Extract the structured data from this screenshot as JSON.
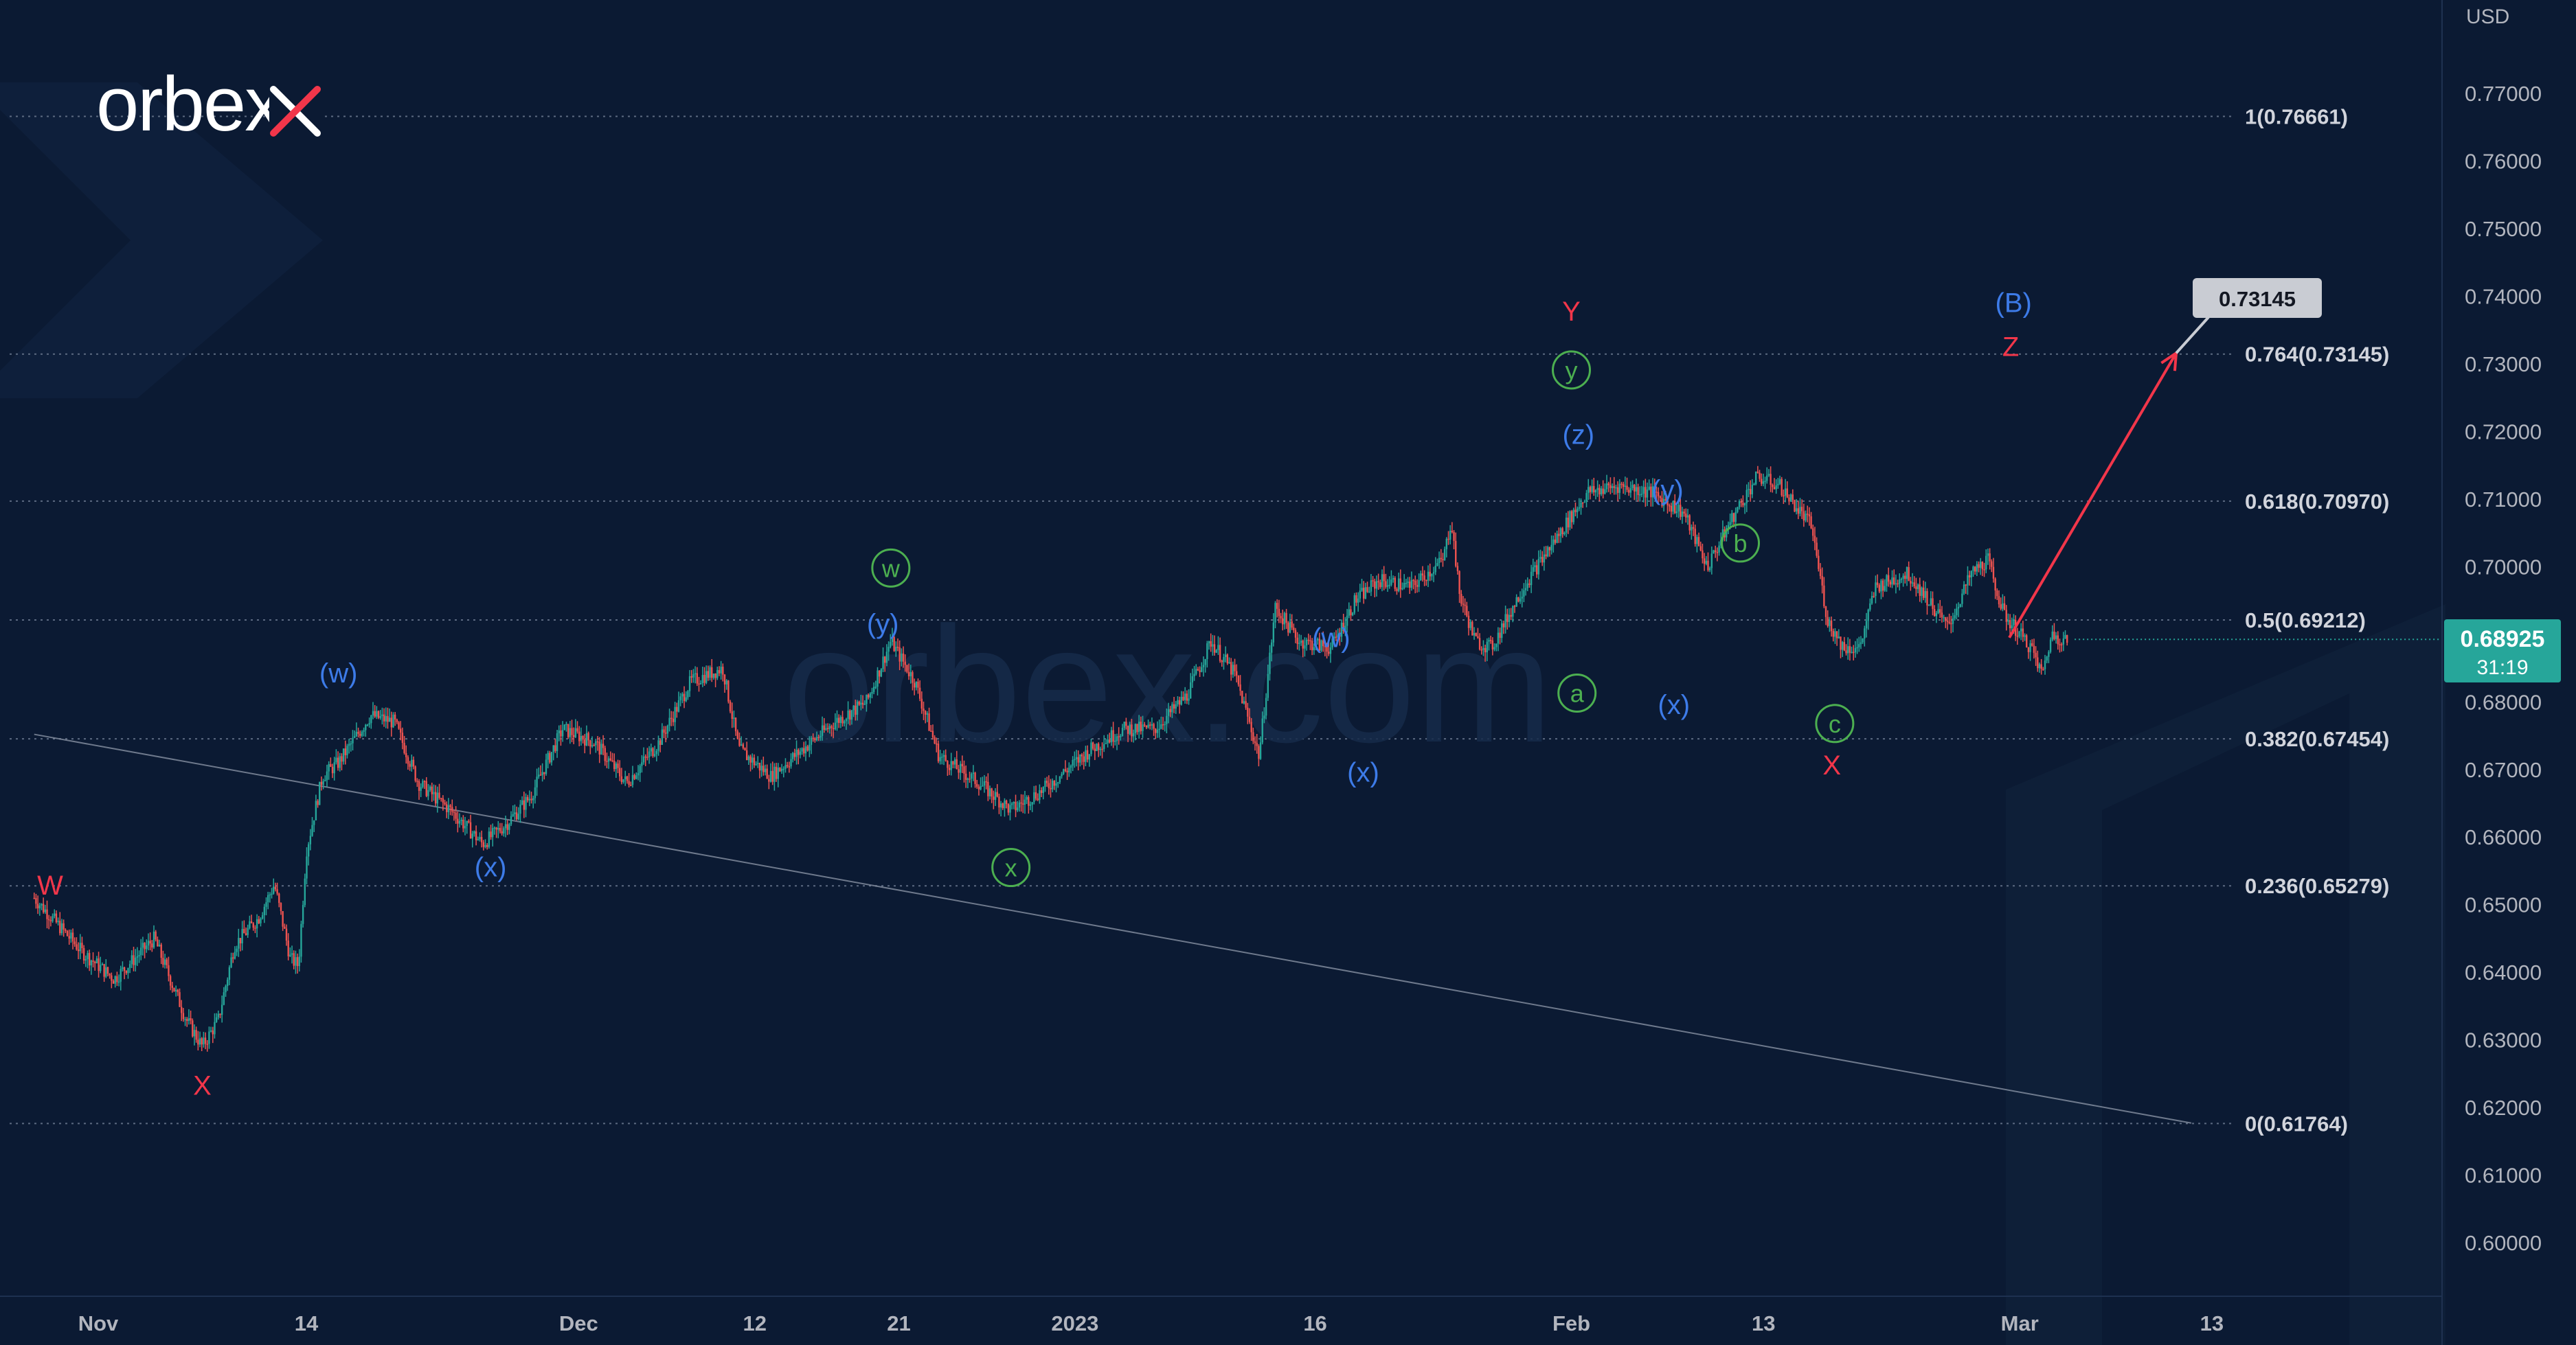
{
  "brand": {
    "logo_text": "orbex",
    "watermark_text": "orbex.com"
  },
  "chart_data": {
    "type": "candlestick",
    "instrument_currency": "USD",
    "ylim": [
      0.592,
      0.779
    ],
    "y_ticks": [
      "0.77000",
      "0.76000",
      "0.75000",
      "0.74000",
      "0.73000",
      "0.72000",
      "0.71000",
      "0.70000",
      "0.69000",
      "0.68000",
      "0.67000",
      "0.66000",
      "0.65000",
      "0.64000",
      "0.63000",
      "0.62000",
      "0.61000",
      "0.60000"
    ],
    "x_ticks": [
      {
        "label": "Nov",
        "day": 0
      },
      {
        "label": "14",
        "day": 13
      },
      {
        "label": "Dec",
        "day": 30
      },
      {
        "label": "12",
        "day": 41
      },
      {
        "label": "21",
        "day": 50
      },
      {
        "label": "2023",
        "day": 61
      },
      {
        "label": "16",
        "day": 76
      },
      {
        "label": "Feb",
        "day": 92
      },
      {
        "label": "13",
        "day": 104
      },
      {
        "label": "Mar",
        "day": 120
      },
      {
        "label": "13",
        "day": 132
      }
    ],
    "current_price": {
      "price": "0.68925",
      "value": 0.68925,
      "countdown": "31:19",
      "color": "#26a69a"
    },
    "fib_levels": [
      {
        "label": "1(0.76661)",
        "value": 0.76661
      },
      {
        "label": "0.764(0.73145)",
        "value": 0.73145
      },
      {
        "label": "0.618(0.70970)",
        "value": 0.7097
      },
      {
        "label": "0.5(0.69212)",
        "value": 0.69212
      },
      {
        "label": "0.382(0.67454)",
        "value": 0.67454
      },
      {
        "label": "0.236(0.65279)",
        "value": 0.65279
      },
      {
        "label": "0(0.61764)",
        "value": 0.61764
      }
    ],
    "trendline": {
      "from": {
        "day": -4,
        "value": 0.6752
      },
      "to": {
        "day": 121,
        "value": 0.6177
      }
    },
    "projection": {
      "from": {
        "day": 110.4,
        "value": 0.6895
      },
      "to": {
        "day": 119.9,
        "value": 0.7316
      },
      "target_label": "0.73145",
      "color": "#f2364a"
    },
    "path_points": [
      [
        -4,
        0.651
      ],
      [
        -1,
        0.643
      ],
      [
        1,
        0.639
      ],
      [
        3.5,
        0.645
      ],
      [
        5.5,
        0.633
      ],
      [
        6.5,
        0.629
      ],
      [
        7.5,
        0.633
      ],
      [
        8.5,
        0.644
      ],
      [
        10,
        0.648
      ],
      [
        11,
        0.653
      ],
      [
        12,
        0.642
      ],
      [
        12.5,
        0.641
      ],
      [
        13,
        0.658
      ],
      [
        14,
        0.669
      ],
      [
        15,
        0.671
      ],
      [
        17,
        0.678
      ],
      [
        18.5,
        0.677
      ],
      [
        20,
        0.668
      ],
      [
        22,
        0.664
      ],
      [
        24,
        0.659
      ],
      [
        25.5,
        0.662
      ],
      [
        27,
        0.666
      ],
      [
        29,
        0.676
      ],
      [
        31,
        0.674
      ],
      [
        33,
        0.668
      ],
      [
        35,
        0.674
      ],
      [
        37,
        0.683
      ],
      [
        39,
        0.685
      ],
      [
        40,
        0.673
      ],
      [
        42,
        0.669
      ],
      [
        44,
        0.673
      ],
      [
        46,
        0.677
      ],
      [
        48,
        0.68
      ],
      [
        49.5,
        0.689
      ],
      [
        51,
        0.683
      ],
      [
        52.5,
        0.672
      ],
      [
        55,
        0.668
      ],
      [
        57,
        0.664
      ],
      [
        59,
        0.667
      ],
      [
        62,
        0.673
      ],
      [
        64,
        0.676
      ],
      [
        66,
        0.676
      ],
      [
        68,
        0.681
      ],
      [
        69.5,
        0.689
      ],
      [
        71,
        0.684
      ],
      [
        72.5,
        0.672
      ],
      [
        73.5,
        0.694
      ],
      [
        75,
        0.689
      ],
      [
        77,
        0.688
      ],
      [
        78.5,
        0.695
      ],
      [
        80,
        0.698
      ],
      [
        82,
        0.697
      ],
      [
        84,
        0.701
      ],
      [
        84.5,
        0.707
      ],
      [
        85,
        0.696
      ],
      [
        86,
        0.689
      ],
      [
        87,
        0.688
      ],
      [
        89,
        0.697
      ],
      [
        91,
        0.704
      ],
      [
        93,
        0.711
      ],
      [
        95,
        0.712
      ],
      [
        97,
        0.711
      ],
      [
        99,
        0.708
      ],
      [
        100.5,
        0.7
      ],
      [
        102,
        0.707
      ],
      [
        103.5,
        0.713
      ],
      [
        104,
        0.713
      ],
      [
        105,
        0.712
      ],
      [
        107,
        0.706
      ],
      [
        108,
        0.692
      ],
      [
        109,
        0.688
      ],
      [
        110,
        0.688
      ],
      [
        111,
        0.697
      ],
      [
        113,
        0.699
      ],
      [
        114,
        0.696
      ],
      [
        115.5,
        0.691
      ],
      [
        117,
        0.699
      ],
      [
        118,
        0.701
      ],
      [
        119,
        0.693
      ],
      [
        120,
        0.69
      ],
      [
        120.7,
        0.688
      ],
      [
        121.4,
        0.684
      ],
      [
        122,
        0.69
      ],
      [
        123,
        0.689
      ]
    ],
    "wave_labels": [
      {
        "text": "W",
        "day": -3,
        "value": 0.6528,
        "color": "#f2364a",
        "circled": false
      },
      {
        "text": "X",
        "day": 6.5,
        "value": 0.6232,
        "color": "#f2364a",
        "circled": false
      },
      {
        "text": "(w)",
        "day": 15,
        "value": 0.6842,
        "color": "#3d7be8",
        "circled": false
      },
      {
        "text": "(x)",
        "day": 24.5,
        "value": 0.6555,
        "color": "#3d7be8",
        "circled": false
      },
      {
        "text": "w",
        "day": 49.5,
        "value": 0.6998,
        "color": "#4caf50",
        "circled": true
      },
      {
        "text": "(y)",
        "day": 49,
        "value": 0.6915,
        "color": "#3d7be8",
        "circled": false
      },
      {
        "text": "x",
        "day": 57,
        "value": 0.6555,
        "color": "#4caf50",
        "circled": true
      },
      {
        "text": "(w)",
        "day": 77,
        "value": 0.6894,
        "color": "#3d7be8",
        "circled": false
      },
      {
        "text": "(x)",
        "day": 79,
        "value": 0.6695,
        "color": "#3d7be8",
        "circled": false
      },
      {
        "text": "(y)",
        "day": 98,
        "value": 0.7113,
        "color": "#3d7be8",
        "circled": false
      },
      {
        "text": "(x)",
        "day": 98.4,
        "value": 0.6795,
        "color": "#3d7be8",
        "circled": false
      },
      {
        "text": "Y",
        "day": 119,
        "value": 0.7377,
        "color": "#f2364a",
        "circled": false
      },
      {
        "text": "y",
        "day": 119,
        "value": 0.7291,
        "color": "#4caf50",
        "circled": true
      },
      {
        "text": "(z)",
        "day": 119.5,
        "value": 0.7195,
        "color": "#3d7be8",
        "circled": false
      },
      {
        "text": "a",
        "day": 119.4,
        "value": 0.6813,
        "color": "#4caf50",
        "circled": true
      },
      {
        "text": "b",
        "day": 131,
        "value": 0.7035,
        "color": "#4caf50",
        "circled": true
      },
      {
        "text": "c",
        "day": 137.7,
        "value": 0.6768,
        "color": "#4caf50",
        "circled": true
      },
      {
        "text": "X",
        "day": 137.5,
        "value": 0.6706,
        "color": "#f2364a",
        "circled": false
      },
      {
        "text": "(B)",
        "day": 150.4,
        "value": 0.739,
        "color": "#3d7be8",
        "circled": false
      },
      {
        "text": "Z",
        "day": 150.2,
        "value": 0.7325,
        "color": "#f2364a",
        "circled": false
      }
    ]
  }
}
